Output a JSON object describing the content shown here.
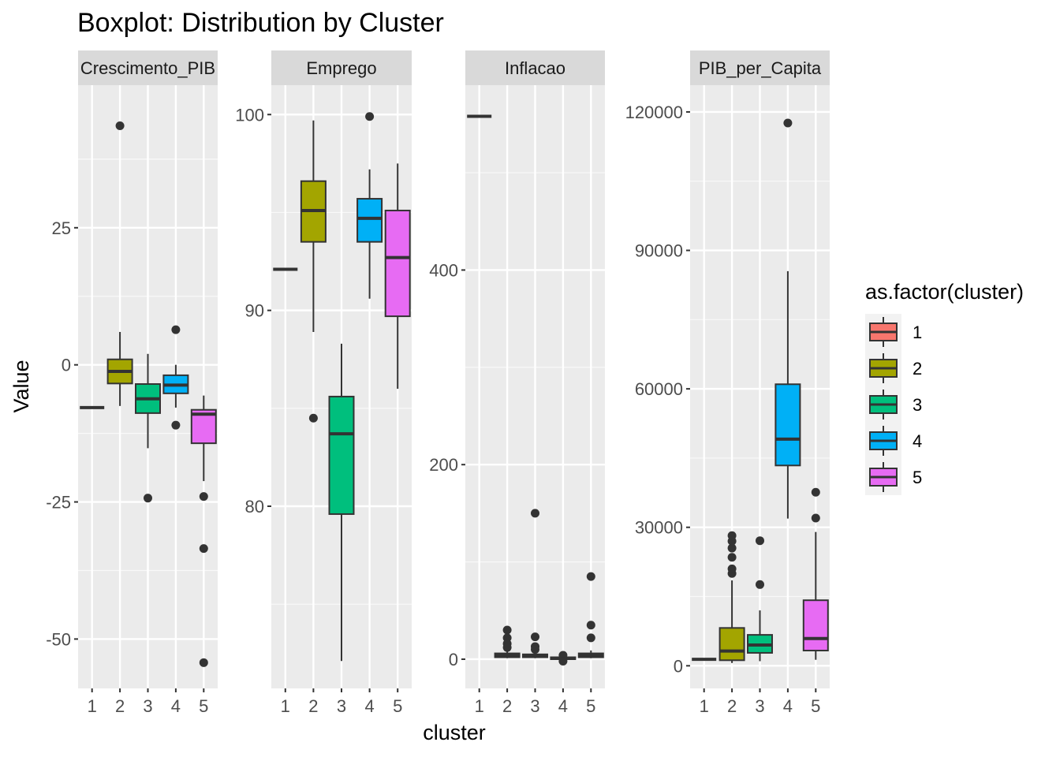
{
  "chart_data": {
    "type": "boxplot",
    "title": "Boxplot: Distribution by Cluster",
    "xlabel": "cluster",
    "ylabel": "Value",
    "categories": [
      "1",
      "2",
      "3",
      "4",
      "5"
    ],
    "legend": {
      "title": "as.factor(cluster)",
      "position": "right",
      "entries": [
        "1",
        "2",
        "3",
        "4",
        "5"
      ]
    },
    "colors": [
      "#F8766D",
      "#A3A500",
      "#00BF7D",
      "#00B0F6",
      "#E76BF3"
    ],
    "panel_background": "#EBEBEB",
    "strip_background": "#D9D9D9",
    "grid": true,
    "facets": [
      {
        "name": "Crescimento_PIB",
        "ylim": [
          -59,
          51
        ],
        "yticks": [
          25,
          0,
          -25,
          -50
        ],
        "boxes": [
          {
            "cluster": "1",
            "lower_whisker": -7.8,
            "q1": -7.8,
            "median": -7.8,
            "q3": -7.8,
            "upper_whisker": -7.8,
            "outliers": []
          },
          {
            "cluster": "2",
            "lower_whisker": -7.5,
            "q1": -3.4,
            "median": -1.2,
            "q3": 1.0,
            "upper_whisker": 6.0,
            "outliers": [
              43.6
            ]
          },
          {
            "cluster": "3",
            "lower_whisker": -15.2,
            "q1": -8.8,
            "median": -6.2,
            "q3": -3.5,
            "upper_whisker": 2.0,
            "outliers": [
              -24.3
            ]
          },
          {
            "cluster": "4",
            "lower_whisker": -7.8,
            "q1": -5.2,
            "median": -3.7,
            "q3": -1.9,
            "upper_whisker": 0.0,
            "outliers": [
              6.4,
              -11.0
            ]
          },
          {
            "cluster": "5",
            "lower_whisker": -21.2,
            "q1": -14.3,
            "median": -9.0,
            "q3": -8.2,
            "upper_whisker": -5.6,
            "outliers": [
              -24.0,
              -33.5,
              -54.3
            ]
          }
        ]
      },
      {
        "name": "Emprego",
        "ylim": [
          70.7,
          101.5
        ],
        "yticks": [
          100,
          90,
          80
        ],
        "boxes": [
          {
            "cluster": "1",
            "lower_whisker": 92.1,
            "q1": 92.1,
            "median": 92.1,
            "q3": 92.1,
            "upper_whisker": 92.1,
            "outliers": []
          },
          {
            "cluster": "2",
            "lower_whisker": 88.9,
            "q1": 93.5,
            "median": 95.1,
            "q3": 96.6,
            "upper_whisker": 99.7,
            "outliers": [
              84.5
            ]
          },
          {
            "cluster": "3",
            "lower_whisker": 72.1,
            "q1": 79.6,
            "median": 83.7,
            "q3": 85.6,
            "upper_whisker": 88.3,
            "outliers": []
          },
          {
            "cluster": "4",
            "lower_whisker": 90.6,
            "q1": 93.5,
            "median": 94.7,
            "q3": 95.7,
            "upper_whisker": 97.2,
            "outliers": [
              99.9
            ]
          },
          {
            "cluster": "5",
            "lower_whisker": 86.0,
            "q1": 89.7,
            "median": 92.7,
            "q3": 95.1,
            "upper_whisker": 97.5,
            "outliers": []
          }
        ]
      },
      {
        "name": "Inflacao",
        "ylim": [
          -30,
          590
        ],
        "yticks": [
          400,
          200,
          0
        ],
        "boxes": [
          {
            "cluster": "1",
            "lower_whisker": 558,
            "q1": 558,
            "median": 558,
            "q3": 558,
            "upper_whisker": 558,
            "outliers": []
          },
          {
            "cluster": "2",
            "lower_whisker": 1,
            "q1": 2,
            "median": 4,
            "q3": 6,
            "upper_whisker": 8,
            "outliers": [
              30,
              22,
              16,
              12
            ]
          },
          {
            "cluster": "3",
            "lower_whisker": 1,
            "q1": 2,
            "median": 3,
            "q3": 5,
            "upper_whisker": 7,
            "outliers": [
              150,
              23,
              13,
              10
            ]
          },
          {
            "cluster": "4",
            "lower_whisker": -1,
            "q1": 0,
            "median": 1,
            "q3": 2,
            "upper_whisker": 3,
            "outliers": [
              4,
              -2
            ]
          },
          {
            "cluster": "5",
            "lower_whisker": 1,
            "q1": 2,
            "median": 4,
            "q3": 6,
            "upper_whisker": 9,
            "outliers": [
              85,
              35,
              22
            ]
          }
        ]
      },
      {
        "name": "PIB_per_Capita",
        "ylim": [
          -4900,
          125800
        ],
        "yticks": [
          120000,
          90000,
          60000,
          30000,
          0
        ],
        "boxes": [
          {
            "cluster": "1",
            "lower_whisker": 1400,
            "q1": 1400,
            "median": 1400,
            "q3": 1400,
            "upper_whisker": 1400,
            "outliers": []
          },
          {
            "cluster": "2",
            "lower_whisker": 600,
            "q1": 1200,
            "median": 3200,
            "q3": 8200,
            "upper_whisker": 18500,
            "outliers": [
              20000,
              21000,
              23500,
              25500,
              27000,
              28200
            ]
          },
          {
            "cluster": "3",
            "lower_whisker": 1000,
            "q1": 2800,
            "median": 4500,
            "q3": 6700,
            "upper_whisker": 12000,
            "outliers": [
              17600,
              27100
            ]
          },
          {
            "cluster": "4",
            "lower_whisker": 31900,
            "q1": 43400,
            "median": 49100,
            "q3": 61000,
            "upper_whisker": 85500,
            "outliers": [
              117600
            ]
          },
          {
            "cluster": "5",
            "lower_whisker": 1300,
            "q1": 3300,
            "median": 5900,
            "q3": 14200,
            "upper_whisker": 29000,
            "outliers": [
              32000,
              37600
            ]
          }
        ]
      }
    ]
  }
}
